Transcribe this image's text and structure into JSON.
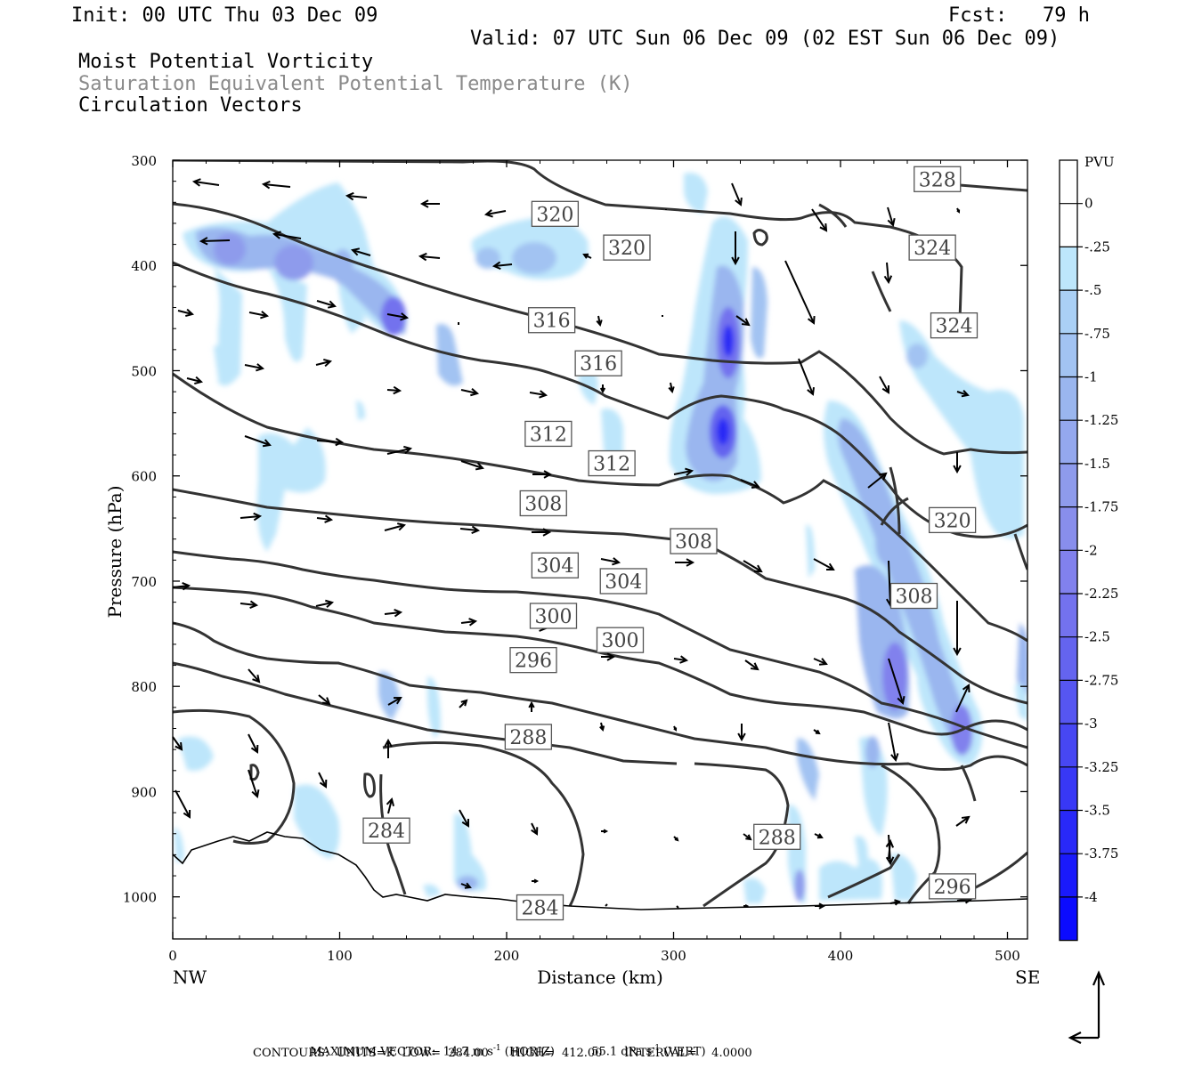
{
  "header": {
    "init": "Init: 00 UTC Thu 03 Dec 09",
    "fcst": "Fcst:   79 h",
    "valid": "Valid: 07 UTC Sun 06 Dec 09 (02 EST Sun 06 Dec 09)",
    "field1": "Moist Potential Vorticity",
    "field2": "Saturation Equivalent Potential Temperature (K)",
    "field3": "Circulation Vectors"
  },
  "footer": {
    "max_vector_label": "MAXIMUM VECTOR:",
    "max_h": "14.7 m s",
    "max_h_unit": "(HORIZ)",
    "max_v": "55.1 dPa s",
    "max_v_unit": "(VERT)",
    "exp": "-1",
    "contours": "CONTOURS:  UNITS=K  LOW=  284.00      HIGH=  412.00      INTERVAL=    4.0000"
  },
  "chart_data": {
    "type": "heatmap",
    "title": "Moist Potential Vorticity",
    "xlabel": "Distance (km)",
    "ylabel": "Pressure (hPa)",
    "x_ticks": [
      0,
      100,
      200,
      300,
      400,
      500
    ],
    "y_ticks": [
      300,
      400,
      500,
      600,
      700,
      800,
      900,
      1000
    ],
    "xlim": [
      0,
      512
    ],
    "ylim": [
      300,
      1040
    ],
    "x_end_labels": {
      "left": "NW",
      "right": "SE"
    },
    "colorbar": {
      "unit": "PVU",
      "levels": [
        "0",
        "-.25",
        "-.5",
        "-.75",
        "-1",
        "-1.25",
        "-1.5",
        "-1.75",
        "-2",
        "-2.25",
        "-2.5",
        "-2.75",
        "-3",
        "-3.25",
        "-3.5",
        "-3.75",
        "-4"
      ],
      "colors": [
        "#ffffff",
        "#ffffff",
        "#bde6fb",
        "#aad0f5",
        "#a2c3f2",
        "#9ab6ef",
        "#94a8ee",
        "#8e9bec",
        "#888eec",
        "#8181ed",
        "#7372ee",
        "#6464ef",
        "#5656f1",
        "#4747f3",
        "#3838f5",
        "#2929f8",
        "#1a1afb",
        "#0b0bfe"
      ]
    },
    "contour_labels": [
      {
        "value": "328",
        "x": 458,
        "p": 318
      },
      {
        "value": "320",
        "x": 229,
        "p": 351
      },
      {
        "value": "320",
        "x": 272,
        "p": 383
      },
      {
        "value": "324",
        "x": 455,
        "p": 383
      },
      {
        "value": "316",
        "x": 227,
        "p": 452
      },
      {
        "value": "324",
        "x": 468,
        "p": 457
      },
      {
        "value": "316",
        "x": 255,
        "p": 493
      },
      {
        "value": "312",
        "x": 225,
        "p": 560
      },
      {
        "value": "312",
        "x": 263,
        "p": 588
      },
      {
        "value": "308",
        "x": 222,
        "p": 626
      },
      {
        "value": "308",
        "x": 312,
        "p": 662
      },
      {
        "value": "320",
        "x": 467,
        "p": 642
      },
      {
        "value": "304",
        "x": 229,
        "p": 685
      },
      {
        "value": "304",
        "x": 270,
        "p": 700
      },
      {
        "value": "308",
        "x": 444,
        "p": 714
      },
      {
        "value": "300",
        "x": 228,
        "p": 733
      },
      {
        "value": "300",
        "x": 268,
        "p": 756
      },
      {
        "value": "296",
        "x": 216,
        "p": 775
      },
      {
        "value": "288",
        "x": 213,
        "p": 848
      },
      {
        "value": "284",
        "x": 128,
        "p": 937
      },
      {
        "value": "288",
        "x": 362,
        "p": 943
      },
      {
        "value": "296",
        "x": 467,
        "p": 990
      },
      {
        "value": "284",
        "x": 220,
        "p": 1010
      }
    ]
  },
  "colors": {
    "pv_light": "#bde6fb",
    "pv_mid": "#8e9bec",
    "pv_dark": "#2b2bf5",
    "contour": "#333333"
  }
}
